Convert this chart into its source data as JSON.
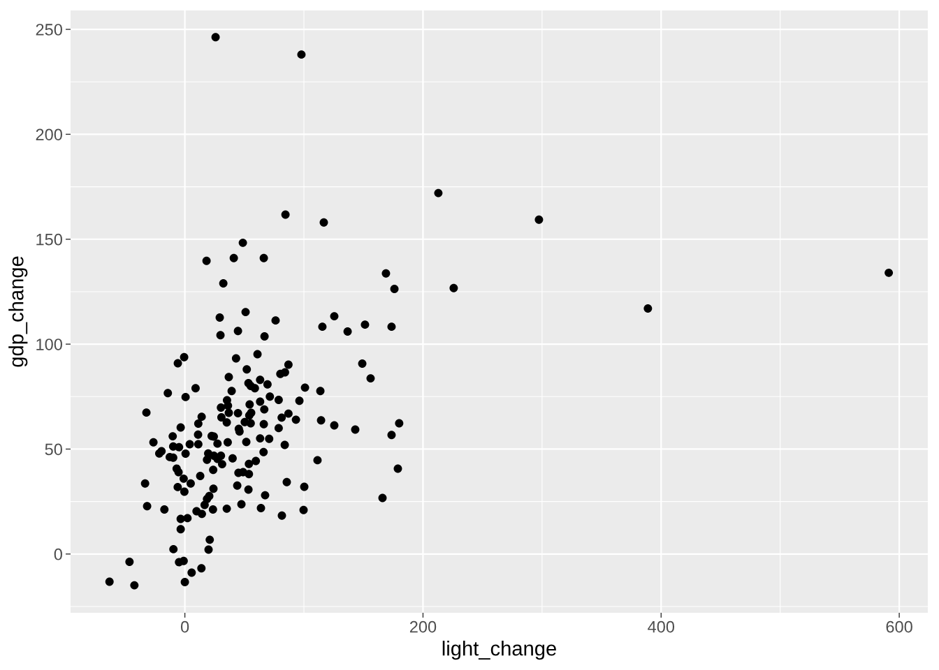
{
  "chart_data": {
    "type": "scatter",
    "xlabel": "light_change",
    "ylabel": "gdp_change",
    "x": [
      25.8,
      97.9,
      212.9,
      297.4,
      84.5,
      116.7,
      48.7,
      18.2,
      41.1,
      66.3,
      32.3,
      168.9,
      176.0,
      225.8,
      591.2,
      388.9,
      51.0,
      29.3,
      44.6,
      29.9,
      66.9,
      76.2,
      125.5,
      115.5,
      136.7,
      151.3,
      173.6,
      149.0,
      156.0,
      113.8,
      100.9,
      96.2,
      93.3,
      114.4,
      125.5,
      143.1,
      180.0,
      173.6,
      83.9,
      111.4,
      178.9,
      100.3,
      85.6,
      166.0,
      99.7,
      81.5,
      67.4,
      -0.6,
      -5.9,
      9.0,
      -14.3,
      0.6,
      -32.3,
      30.3,
      30.7,
      14.1,
      11.3,
      -3.5,
      11.1,
      -10.2,
      22.5,
      24.3,
      -26.4,
      -9.8,
      -4.9,
      4.1,
      11.3,
      27.4,
      -19.6,
      -21.5,
      0.6,
      -12.7,
      -9.8,
      19.6,
      24.4,
      18.6,
      27.4,
      30.3,
      31.3,
      -6.9,
      -5.3,
      23.8,
      12.9,
      -1.0,
      4.9,
      -33.4,
      -6.0,
      -0.4,
      24.0,
      20.5,
      18.6,
      16.6,
      -31.7,
      -17.2,
      9.8,
      14.3,
      23.6,
      -3.5,
      2.2,
      -3.5,
      20.9,
      19.9,
      -9.6,
      -46.5,
      -4.9,
      -1.0,
      13.9,
      5.7,
      -63.3,
      -42.4,
      0.0,
      43.0,
      61.0,
      87.0,
      52.0,
      80.2,
      84.1,
      36.9,
      53.4,
      55.3,
      58.8,
      63.2,
      69.4,
      39.3,
      35.4,
      36.2,
      36.9,
      35.2,
      71.4,
      78.8,
      63.2,
      54.4,
      66.7,
      44.6,
      55.7,
      54.1,
      87.0,
      81.3,
      50.3,
      55.3,
      66.3,
      45.3,
      45.9,
      78.8,
      36.0,
      51.6,
      63.2,
      70.8,
      66.1,
      40.1,
      53.8,
      59.6,
      45.0,
      48.9,
      53.8,
      44.0,
      53.4,
      35.2,
      47.5,
      63.9
    ],
    "values": [
      246.3,
      238.0,
      172.0,
      159.3,
      161.7,
      158.0,
      148.3,
      139.7,
      141.0,
      141.0,
      129.0,
      133.7,
      126.3,
      126.7,
      134.0,
      117.0,
      115.3,
      112.7,
      106.3,
      104.3,
      103.7,
      111.3,
      113.3,
      108.3,
      106.0,
      109.3,
      108.3,
      90.7,
      83.7,
      77.7,
      79.3,
      73.0,
      64.0,
      63.7,
      61.3,
      59.3,
      62.3,
      56.7,
      52.0,
      44.7,
      40.7,
      32.0,
      34.3,
      26.7,
      21.0,
      18.3,
      28.0,
      93.8,
      90.9,
      79.0,
      76.7,
      74.8,
      67.4,
      69.8,
      65.1,
      65.4,
      62.1,
      60.3,
      56.9,
      56.1,
      56.2,
      56.0,
      53.2,
      51.2,
      50.9,
      52.3,
      52.3,
      52.6,
      49.0,
      47.9,
      47.8,
      46.2,
      45.9,
      47.9,
      46.8,
      44.9,
      45.3,
      46.8,
      42.8,
      40.7,
      39.0,
      40.1,
      37.2,
      35.9,
      33.6,
      33.6,
      31.9,
      29.7,
      31.1,
      27.6,
      26.2,
      23.4,
      22.8,
      21.2,
      20.4,
      19.1,
      21.2,
      16.7,
      17.1,
      11.8,
      6.8,
      2.1,
      2.3,
      -3.7,
      -3.9,
      -3.3,
      -6.8,
      -8.9,
      -13.2,
      -14.9,
      -13.4,
      93.2,
      95.2,
      90.2,
      88.0,
      85.8,
      86.6,
      84.3,
      81.4,
      80.1,
      79.0,
      83.0,
      80.8,
      77.7,
      73.3,
      70.7,
      67.3,
      62.7,
      75.0,
      73.4,
      72.6,
      71.3,
      68.9,
      67.1,
      67.3,
      66.0,
      66.9,
      65.0,
      62.9,
      62.3,
      61.9,
      59.6,
      58.4,
      60.0,
      53.2,
      53.4,
      55.1,
      54.9,
      48.6,
      45.6,
      42.9,
      44.3,
      38.7,
      39.0,
      38.1,
      32.6,
      30.7,
      21.6,
      23.7,
      21.9
    ],
    "color": "#000000",
    "marker": "circle",
    "xlim": [
      -96,
      624
    ],
    "ylim": [
      -28,
      259
    ],
    "xticks": [
      0,
      200,
      400,
      600
    ],
    "yticks": [
      0,
      50,
      100,
      150,
      200,
      250
    ],
    "grid": true
  }
}
